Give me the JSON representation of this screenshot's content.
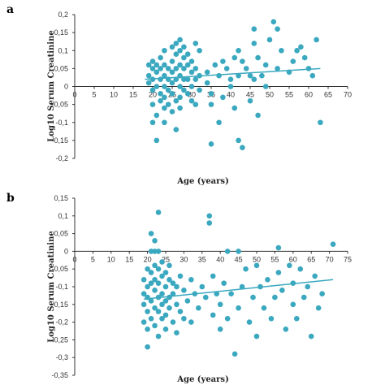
{
  "chart_data": [
    {
      "type": "scatter",
      "panel_label": "a",
      "xlabel": "Age (years)",
      "ylabel": "Log10 Serum Creatinine",
      "xlim": [
        0,
        70
      ],
      "ylim": [
        -0.2,
        0.2
      ],
      "x_ticks": [
        "0",
        "5",
        "10",
        "15",
        "20",
        "25",
        "30",
        "35",
        "40",
        "45",
        "50",
        "55",
        "60",
        "65",
        "70"
      ],
      "y_ticks": [
        "0,2",
        "0,15",
        "0,1",
        "0,05",
        "0",
        "-0,05",
        "-0,1",
        "-0,15",
        "-0,2"
      ],
      "trendline": {
        "x": [
          18,
          63
        ],
        "y": [
          0.02,
          0.05
        ]
      },
      "points": [
        [
          19,
          0.06
        ],
        [
          19,
          0.03
        ],
        [
          19,
          0.01
        ],
        [
          20,
          0.07
        ],
        [
          20,
          0.05
        ],
        [
          20,
          0.02
        ],
        [
          20,
          -0.01
        ],
        [
          20,
          -0.05
        ],
        [
          20,
          -0.1
        ],
        [
          21,
          0.06
        ],
        [
          21,
          0.04
        ],
        [
          21,
          0.0
        ],
        [
          21,
          -0.08
        ],
        [
          21,
          -0.15
        ],
        [
          22,
          0.08
        ],
        [
          22,
          0.05
        ],
        [
          22,
          0.02
        ],
        [
          22,
          -0.02
        ],
        [
          22,
          -0.04
        ],
        [
          23,
          0.1
        ],
        [
          23,
          0.06
        ],
        [
          23,
          0.03
        ],
        [
          23,
          0.0
        ],
        [
          23,
          -0.03
        ],
        [
          23,
          -0.06
        ],
        [
          23,
          -0.1
        ],
        [
          24,
          0.05
        ],
        [
          24,
          0.02
        ],
        [
          24,
          -0.01
        ],
        [
          24,
          -0.05
        ],
        [
          25,
          0.11
        ],
        [
          25,
          0.07
        ],
        [
          25,
          0.04
        ],
        [
          25,
          0.01
        ],
        [
          25,
          -0.02
        ],
        [
          25,
          -0.07
        ],
        [
          26,
          0.12
        ],
        [
          26,
          0.09
        ],
        [
          26,
          0.05
        ],
        [
          26,
          0.02
        ],
        [
          26,
          -0.04
        ],
        [
          26,
          -0.12
        ],
        [
          27,
          0.13
        ],
        [
          27,
          0.1
        ],
        [
          27,
          0.06
        ],
        [
          27,
          0.03
        ],
        [
          27,
          0.0
        ],
        [
          27,
          -0.03
        ],
        [
          27,
          -0.06
        ],
        [
          28,
          0.11
        ],
        [
          28,
          0.08
        ],
        [
          28,
          0.05
        ],
        [
          28,
          0.02
        ],
        [
          28,
          -0.01
        ],
        [
          29,
          0.09
        ],
        [
          29,
          0.06
        ],
        [
          29,
          0.02
        ],
        [
          29,
          -0.02
        ],
        [
          30,
          0.07
        ],
        [
          30,
          0.04
        ],
        [
          30,
          0.0
        ],
        [
          30,
          -0.04
        ],
        [
          31,
          0.12
        ],
        [
          31,
          0.05
        ],
        [
          31,
          0.02
        ],
        [
          31,
          -0.05
        ],
        [
          32,
          0.1
        ],
        [
          32,
          0.03
        ],
        [
          32,
          -0.01
        ],
        [
          34,
          0.04
        ],
        [
          34,
          0.01
        ],
        [
          35,
          -0.02
        ],
        [
          35,
          -0.05
        ],
        [
          35,
          -0.16
        ],
        [
          36,
          0.06
        ],
        [
          37,
          0.03
        ],
        [
          37,
          -0.1
        ],
        [
          38,
          0.07
        ],
        [
          38,
          -0.03
        ],
        [
          39,
          0.05
        ],
        [
          40,
          0.02
        ],
        [
          40,
          0.0
        ],
        [
          41,
          0.08
        ],
        [
          41,
          -0.06
        ],
        [
          42,
          0.1
        ],
        [
          42,
          0.03
        ],
        [
          42,
          -0.15
        ],
        [
          43,
          0.07
        ],
        [
          43,
          -0.17
        ],
        [
          44,
          0.05
        ],
        [
          45,
          0.03
        ],
        [
          45,
          -0.04
        ],
        [
          46,
          0.16
        ],
        [
          46,
          0.12
        ],
        [
          46,
          0.02
        ],
        [
          47,
          0.08
        ],
        [
          47,
          -0.08
        ],
        [
          48,
          0.03
        ],
        [
          49,
          0.06
        ],
        [
          49,
          0.0
        ],
        [
          50,
          0.13
        ],
        [
          51,
          0.18
        ],
        [
          52,
          0.05
        ],
        [
          52,
          0.16
        ],
        [
          53,
          0.1
        ],
        [
          55,
          0.04
        ],
        [
          56,
          0.07
        ],
        [
          57,
          0.1
        ],
        [
          58,
          0.11
        ],
        [
          59,
          0.08
        ],
        [
          60,
          0.05
        ],
        [
          61,
          0.03
        ],
        [
          62,
          0.13
        ],
        [
          63,
          -0.1
        ]
      ]
    },
    {
      "type": "scatter",
      "panel_label": "b",
      "xlabel": "Age (years)",
      "ylabel": "Log10 Serum Creatinine",
      "xlim": [
        0,
        75
      ],
      "ylim": [
        -0.35,
        0.15
      ],
      "x_ticks": [
        "0",
        "5",
        "10",
        "15",
        "20",
        "25",
        "30",
        "35",
        "40",
        "45",
        "50",
        "55",
        "60",
        "65",
        "70",
        "75"
      ],
      "y_ticks": [
        "0,15",
        "0,1",
        "0,05",
        "0",
        "-0,05",
        "-0,1",
        "-0,15",
        "-0,2",
        "-0,25",
        "-0,3",
        "-0,35"
      ],
      "trendline": {
        "x": [
          19,
          71
        ],
        "y": [
          -0.135,
          -0.08
        ]
      },
      "points": [
        [
          19,
          -0.08
        ],
        [
          19,
          -0.12
        ],
        [
          19,
          -0.15
        ],
        [
          19,
          -0.2
        ],
        [
          20,
          -0.05
        ],
        [
          20,
          -0.1
        ],
        [
          20,
          -0.13
        ],
        [
          20,
          -0.17
        ],
        [
          20,
          -0.22
        ],
        [
          20,
          -0.27
        ],
        [
          21,
          0.05
        ],
        [
          21,
          0.0
        ],
        [
          21,
          -0.06
        ],
        [
          21,
          -0.09
        ],
        [
          21,
          -0.14
        ],
        [
          21,
          -0.19
        ],
        [
          22,
          0.03
        ],
        [
          22,
          0.0
        ],
        [
          22,
          -0.04
        ],
        [
          22,
          -0.08
        ],
        [
          22,
          -0.11
        ],
        [
          22,
          -0.16
        ],
        [
          22,
          -0.21
        ],
        [
          23,
          0.11
        ],
        [
          23,
          0.0
        ],
        [
          23,
          -0.05
        ],
        [
          23,
          -0.09
        ],
        [
          23,
          -0.13
        ],
        [
          23,
          -0.17
        ],
        [
          23,
          -0.24
        ],
        [
          24,
          -0.03
        ],
        [
          24,
          -0.07
        ],
        [
          24,
          -0.12
        ],
        [
          24,
          -0.15
        ],
        [
          24,
          -0.19
        ],
        [
          25,
          -0.06
        ],
        [
          25,
          -0.1
        ],
        [
          25,
          -0.14
        ],
        [
          25,
          -0.18
        ],
        [
          25,
          -0.22
        ],
        [
          26,
          -0.04
        ],
        [
          26,
          -0.08
        ],
        [
          26,
          -0.13
        ],
        [
          26,
          -0.16
        ],
        [
          27,
          -0.09
        ],
        [
          27,
          -0.12
        ],
        [
          27,
          -0.2
        ],
        [
          28,
          -0.1
        ],
        [
          28,
          -0.15
        ],
        [
          28,
          -0.23
        ],
        [
          29,
          -0.07
        ],
        [
          29,
          -0.17
        ],
        [
          30,
          -0.11
        ],
        [
          30,
          -0.19
        ],
        [
          31,
          -0.14
        ],
        [
          32,
          -0.08
        ],
        [
          32,
          -0.2
        ],
        [
          33,
          -0.12
        ],
        [
          34,
          -0.16
        ],
        [
          35,
          -0.1
        ],
        [
          36,
          -0.13
        ],
        [
          37,
          0.1
        ],
        [
          37,
          0.08
        ],
        [
          38,
          -0.07
        ],
        [
          38,
          -0.18
        ],
        [
          39,
          -0.12
        ],
        [
          40,
          -0.15
        ],
        [
          40,
          -0.22
        ],
        [
          41,
          -0.09
        ],
        [
          42,
          0.0
        ],
        [
          42,
          -0.19
        ],
        [
          43,
          -0.12
        ],
        [
          44,
          -0.29
        ],
        [
          45,
          0.0
        ],
        [
          45,
          -0.16
        ],
        [
          46,
          -0.1
        ],
        [
          47,
          -0.05
        ],
        [
          48,
          -0.2
        ],
        [
          49,
          -0.13
        ],
        [
          50,
          -0.04
        ],
        [
          50,
          -0.24
        ],
        [
          51,
          -0.1
        ],
        [
          52,
          -0.16
        ],
        [
          53,
          -0.08
        ],
        [
          54,
          -0.19
        ],
        [
          55,
          -0.13
        ],
        [
          56,
          0.01
        ],
        [
          56,
          -0.06
        ],
        [
          57,
          -0.11
        ],
        [
          58,
          -0.22
        ],
        [
          59,
          -0.04
        ],
        [
          60,
          -0.09
        ],
        [
          60,
          -0.15
        ],
        [
          61,
          -0.19
        ],
        [
          62,
          -0.05
        ],
        [
          63,
          -0.13
        ],
        [
          64,
          -0.1
        ],
        [
          65,
          -0.24
        ],
        [
          66,
          -0.07
        ],
        [
          67,
          -0.16
        ],
        [
          68,
          -0.12
        ],
        [
          71,
          0.02
        ]
      ]
    }
  ]
}
